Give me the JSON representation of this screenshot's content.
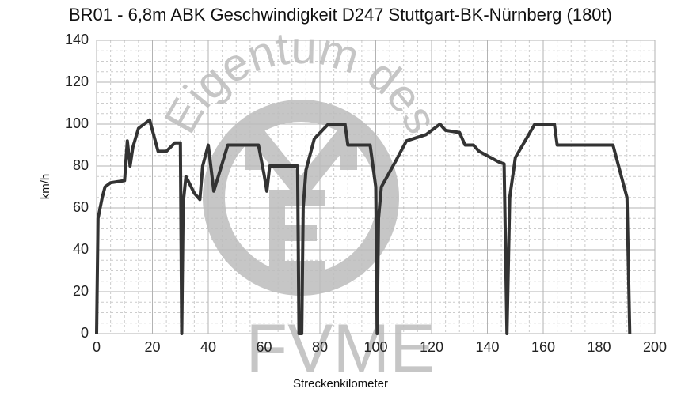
{
  "chart_data": {
    "type": "line",
    "title": "BR01 - 6,8m ABK Geschwindigkeit D247 Stuttgart-BK-Nürnberg (180t)",
    "x_label": "Streckenkilometer",
    "y_label": "km/h",
    "watermark_texts": [
      "Eigentum des",
      "FVME"
    ],
    "x": [
      0,
      0.5,
      2,
      3,
      5,
      10,
      11,
      12,
      13,
      15,
      19,
      22,
      25,
      28,
      30,
      30.5,
      31,
      32,
      35,
      37,
      38,
      40,
      42,
      47,
      58,
      60,
      61,
      62,
      68,
      72,
      72.5,
      73.5,
      74,
      75,
      78,
      83,
      89,
      90,
      98,
      100,
      100.5,
      101,
      102,
      107,
      111,
      118,
      123,
      125,
      130,
      132,
      135,
      137,
      144,
      146,
      147,
      148,
      150,
      157,
      164,
      165,
      175,
      185,
      190,
      191
    ],
    "values": [
      0,
      55,
      65,
      70,
      72,
      73,
      92,
      80,
      89,
      98,
      102,
      87,
      87,
      91,
      91,
      0,
      62,
      75,
      67,
      64,
      80,
      90,
      68,
      90,
      90,
      76,
      68,
      80,
      80,
      80,
      0,
      0,
      60,
      78,
      93,
      100,
      100,
      90,
      90,
      70,
      0,
      55,
      70,
      82,
      92,
      95,
      100,
      97,
      96,
      90,
      90,
      87,
      82,
      81,
      0,
      65,
      84,
      100,
      100,
      90,
      90,
      90,
      65,
      0
    ],
    "color": "#333333",
    "xlim": [
      0,
      200
    ],
    "xticks": [
      0,
      20,
      40,
      60,
      80,
      100,
      120,
      140,
      160,
      180,
      200
    ],
    "ylim": [
      0,
      140
    ],
    "yticks": [
      0,
      20,
      40,
      60,
      80,
      100,
      120,
      140
    ],
    "grid": true
  }
}
